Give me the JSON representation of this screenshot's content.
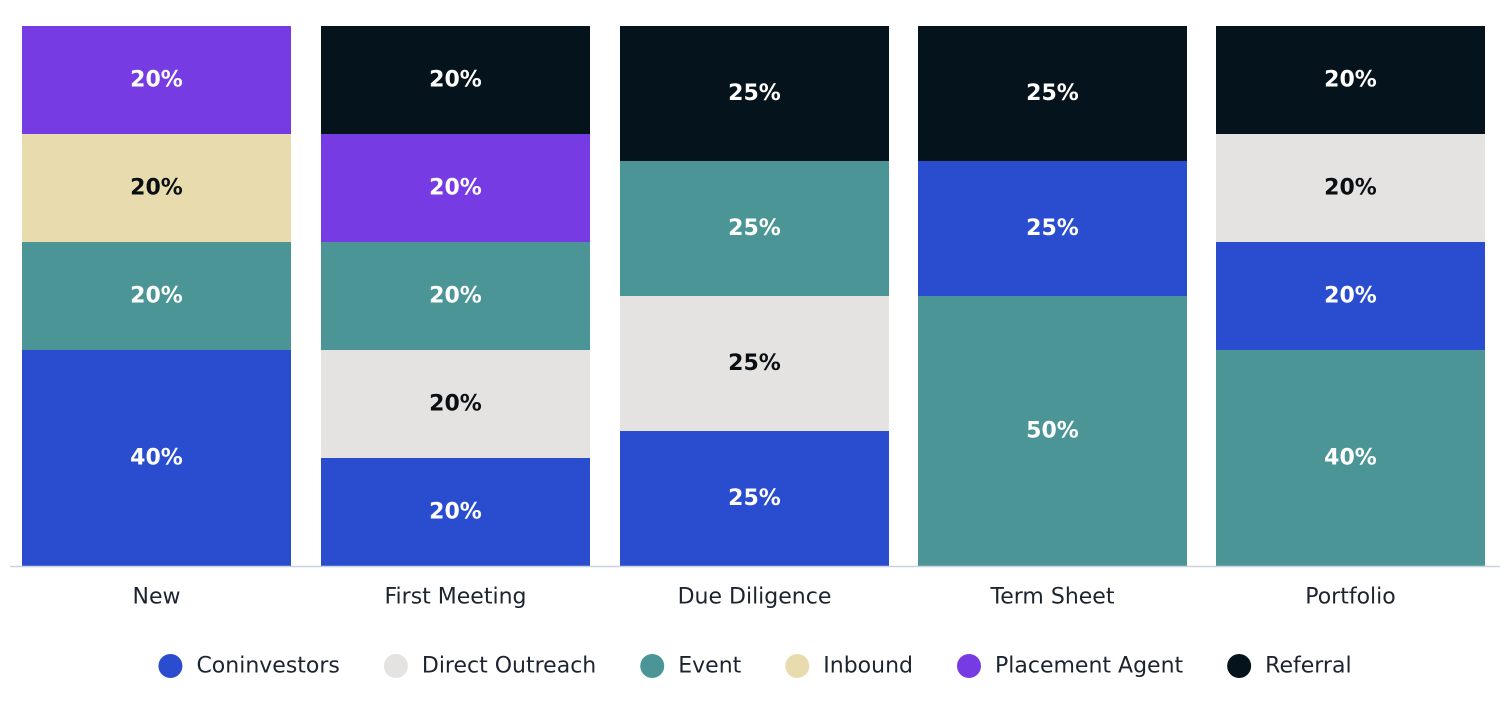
{
  "chart_data": {
    "type": "bar",
    "stacked": true,
    "normalized": true,
    "categories": [
      "New",
      "First Meeting",
      "Due Diligence",
      "Term Sheet",
      "Portfolio"
    ],
    "series": [
      {
        "name": "Coninvestors",
        "color": "#2a4dd0",
        "label_color": "#ffffff",
        "values": [
          40,
          20,
          25,
          25,
          20
        ]
      },
      {
        "name": "Direct Outreach",
        "color": "#e5e3e1",
        "label_color": "#0a0f14",
        "values": [
          0,
          20,
          25,
          0,
          20
        ]
      },
      {
        "name": "Event",
        "color": "#4b9597",
        "label_color": "#ffffff",
        "values": [
          20,
          20,
          25,
          50,
          40
        ]
      },
      {
        "name": "Inbound",
        "color": "#e8dcaf",
        "label_color": "#0a0f14",
        "values": [
          20,
          0,
          0,
          0,
          0
        ]
      },
      {
        "name": "Placement Agent",
        "color": "#763be3",
        "label_color": "#ffffff",
        "values": [
          20,
          20,
          0,
          0,
          0
        ]
      },
      {
        "name": "Referral",
        "color": "#05141c",
        "label_color": "#ffffff",
        "values": [
          0,
          20,
          25,
          25,
          20
        ]
      }
    ],
    "series_order": {
      "New": [
        "Coninvestors",
        "Event",
        "Inbound",
        "Placement Agent"
      ],
      "First Meeting": [
        "Coninvestors",
        "Direct Outreach",
        "Event",
        "Placement Agent",
        "Referral"
      ],
      "Due Diligence": [
        "Coninvestors",
        "Direct Outreach",
        "Event",
        "Referral"
      ],
      "Term Sheet": [
        "Event",
        "Coninvestors",
        "Referral"
      ],
      "Portfolio": [
        "Event",
        "Coninvestors",
        "Direct Outreach",
        "Referral"
      ]
    },
    "value_suffix": "%",
    "ylim": [
      0,
      100
    ],
    "grid": false,
    "legend_position": "bottom",
    "axis_color": "#c9d3e0"
  }
}
